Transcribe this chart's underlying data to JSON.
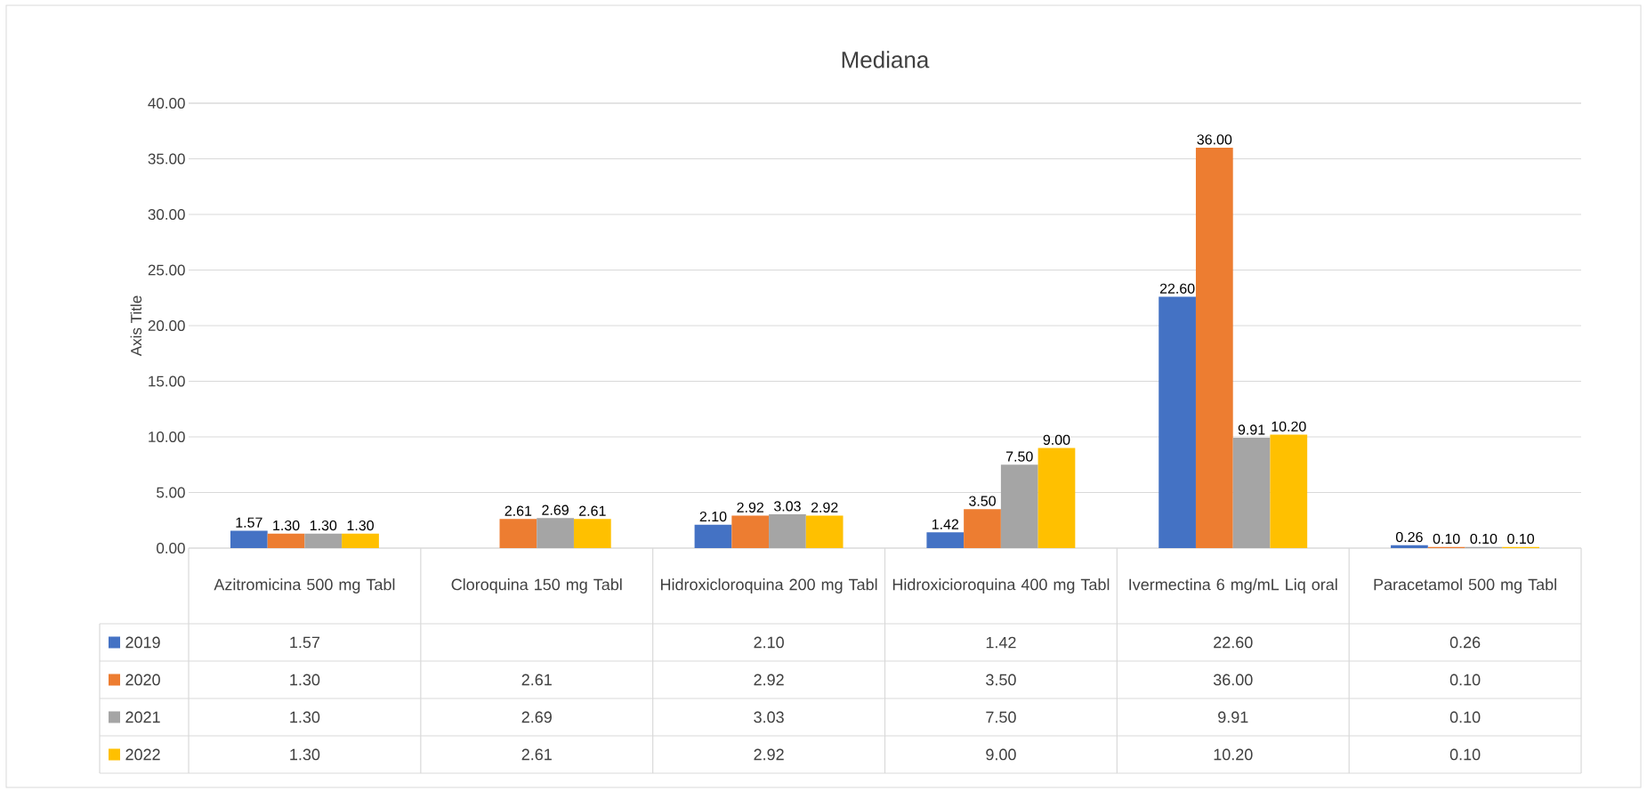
{
  "chart_data": {
    "type": "bar",
    "title": "Mediana",
    "ylabel": "Axis Title",
    "categories": [
      "Azitromicina 500 mg Tabl",
      "Cloroquina 150 mg Tabl",
      "Hidroxicloroquina 200 mg Tabl",
      "Hidroxicioroquina 400 mg Tabl",
      "Ivermectina 6 mg/mL Liq oral",
      "Paracetamol 500 mg Tabl"
    ],
    "series": [
      {
        "name": "2019",
        "color": "#4472c4",
        "values": [
          1.57,
          null,
          2.1,
          1.42,
          22.6,
          0.26
        ],
        "value_labels": [
          "1.57",
          null,
          "2.10",
          "1.42",
          "22.60",
          "0.26"
        ]
      },
      {
        "name": "2020",
        "color": "#ed7d31",
        "values": [
          1.3,
          2.61,
          2.92,
          3.5,
          36.0,
          0.1
        ],
        "value_labels": [
          "1.30",
          "2.61",
          "2.92",
          "3.50",
          "36.00",
          "0.10"
        ]
      },
      {
        "name": "2021",
        "color": "#a5a5a5",
        "values": [
          1.3,
          2.69,
          3.03,
          7.5,
          9.91,
          0.1
        ],
        "value_labels": [
          "1.30",
          "2.69",
          "3.03",
          "7.50",
          "9.91",
          "0.10"
        ]
      },
      {
        "name": "2022",
        "color": "#ffc000",
        "values": [
          1.3,
          2.61,
          2.92,
          9.0,
          10.2,
          0.1
        ],
        "value_labels": [
          "1.30",
          "2.61",
          "2.92",
          "9.00",
          "10.20",
          "0.10"
        ]
      }
    ],
    "ylim": [
      0,
      40
    ],
    "yticks": [
      {
        "value": 0,
        "label": "0.00"
      },
      {
        "value": 5,
        "label": "5.00"
      },
      {
        "value": 10,
        "label": "10.00"
      },
      {
        "value": 15,
        "label": "15.00"
      },
      {
        "value": 20,
        "label": "20.00"
      },
      {
        "value": 25,
        "label": "25.00"
      },
      {
        "value": 30,
        "label": "30.00"
      },
      {
        "value": 35,
        "label": "35.00"
      },
      {
        "value": 40,
        "label": "40.00"
      }
    ],
    "grid": "y",
    "legend": "bottom"
  }
}
